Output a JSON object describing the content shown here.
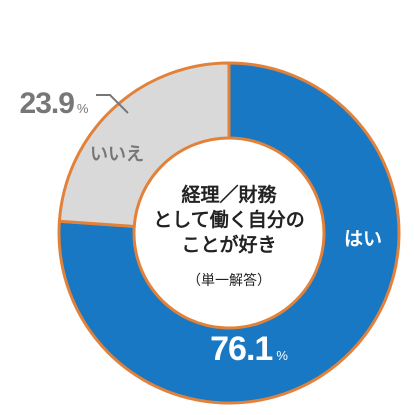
{
  "chart_data": {
    "type": "pie",
    "variant": "donut",
    "title_lines": [
      "経理／財務",
      "として働く自分の",
      "ことが好き"
    ],
    "note": "（単一解答）",
    "slices": [
      {
        "label": "はい",
        "value": 76.1,
        "value_text": "76.1",
        "unit": "%",
        "color": "#1878C3"
      },
      {
        "label": "いいえ",
        "value": 23.9,
        "value_text": "23.9",
        "unit": "%",
        "color": "#D9D9D9"
      }
    ],
    "edge_color": "#E2823A"
  }
}
